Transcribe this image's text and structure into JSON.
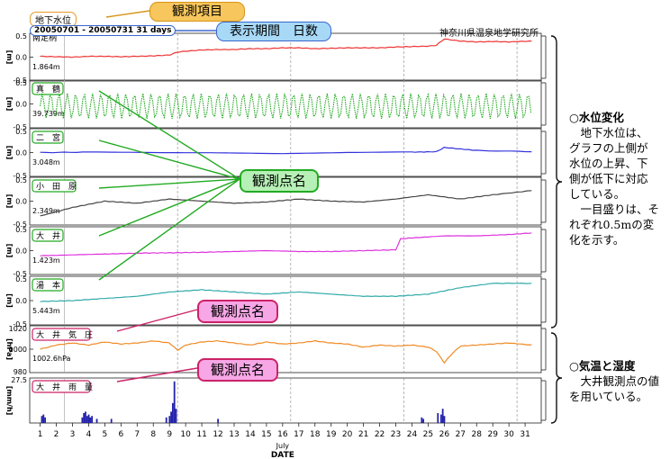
{
  "header": {
    "item_label": "地下水位",
    "period_label": "20050701 - 20050731 31 days",
    "institution": "神奈川県温泉地学研究所"
  },
  "callouts": {
    "observation_item": "観測項目",
    "period_days": "表示期間　日数",
    "station_name_1": "観測点名",
    "station_name_2": "観測点名",
    "station_name_3": "観測点名"
  },
  "side_notes": {
    "water_title": "○水位変化",
    "water_body": [
      "　地下水位は、",
      "グラフの上側が",
      "水位の上昇、下",
      "側が低下に対応",
      "している。",
      "　一目盛りは、そ",
      "れぞれ0.5mの変",
      "化を示す。"
    ],
    "weather_title": "○気温と湿度",
    "weather_body": [
      "　大井観測点の値",
      "を用いている。"
    ]
  },
  "chart_data": [
    {
      "type": "line",
      "station": "南足柄",
      "ylabel": "[m]",
      "yticks": [
        "0.5",
        "0.0",
        "-0.5"
      ],
      "ylim": [
        -0.5,
        0.5
      ],
      "baseline": "1.864m",
      "color": "#ee3333",
      "x": [
        1,
        2,
        3,
        4,
        5,
        6,
        7,
        8,
        9,
        9.5,
        10,
        11,
        12,
        13,
        14,
        15,
        16,
        17,
        18,
        19,
        20,
        21,
        22,
        23,
        24,
        25,
        25.5,
        26,
        27,
        28,
        29,
        30,
        31.4
      ],
      "values": [
        0.02,
        0.01,
        0.0,
        0.02,
        0.02,
        0.01,
        0.02,
        0.03,
        0.05,
        0.12,
        0.14,
        0.17,
        0.18,
        0.18,
        0.2,
        0.2,
        0.22,
        0.22,
        0.2,
        0.21,
        0.22,
        0.22,
        0.22,
        0.24,
        0.25,
        0.26,
        0.28,
        0.43,
        0.38,
        0.36,
        0.37,
        0.36,
        0.38
      ]
    },
    {
      "type": "line",
      "station": "真鶴",
      "ylabel": "[m]",
      "yticks": [
        "0.5",
        "0.0",
        "-0.5"
      ],
      "ylim": [
        -0.5,
        0.5
      ],
      "baseline": "39.739m",
      "color": "#22aa22",
      "style": "dotted",
      "mean": -0.05,
      "amplitude": 0.3,
      "cycles_per_day": 1.93
    },
    {
      "type": "line",
      "station": "二宮",
      "ylabel": "[m]",
      "yticks": [
        "0.5",
        "0.0",
        "-0.5"
      ],
      "ylim": [
        -0.5,
        0.5
      ],
      "baseline": "3.048m",
      "color": "#3333dd",
      "x": [
        1,
        4,
        8,
        12,
        16,
        20,
        24,
        25.5,
        26,
        28,
        31.4
      ],
      "values": [
        0.0,
        0.01,
        0.0,
        0.0,
        -0.02,
        0.0,
        0.01,
        0.02,
        0.12,
        0.05,
        0.02
      ]
    },
    {
      "type": "line",
      "station": "小田原",
      "ylabel": "[m]",
      "yticks": [
        "0.5",
        "0.0",
        "-0.5"
      ],
      "ylim": [
        -0.5,
        0.5
      ],
      "baseline": "2.349m",
      "color": "#444444",
      "x": [
        1,
        3,
        5,
        7,
        9,
        11,
        13,
        15,
        17,
        19,
        21,
        23,
        25,
        27,
        29,
        31.4
      ],
      "values": [
        -0.35,
        -0.15,
        0.0,
        -0.05,
        0.05,
        0.0,
        -0.05,
        -0.02,
        0.05,
        0.0,
        -0.02,
        0.05,
        0.15,
        0.05,
        0.15,
        0.25
      ]
    },
    {
      "type": "line",
      "station": "大井",
      "ylabel": "[m]",
      "yticks": [
        "0.5",
        "0.0",
        "-0.5"
      ],
      "ylim": [
        -0.5,
        0.5
      ],
      "baseline": "1.423m",
      "color": "#dd33dd",
      "x": [
        1,
        3,
        5,
        7,
        9,
        11,
        13,
        15,
        17,
        19,
        21,
        23,
        23.3,
        24,
        26,
        28,
        30,
        31.4
      ],
      "values": [
        -0.12,
        -0.1,
        -0.08,
        -0.06,
        -0.05,
        -0.04,
        -0.02,
        0.0,
        -0.02,
        -0.02,
        0.0,
        0.02,
        0.28,
        0.3,
        0.35,
        0.35,
        0.38,
        0.42
      ]
    },
    {
      "type": "line",
      "station": "湯本",
      "ylabel": "[m]",
      "yticks": [
        "0.5",
        "0.0",
        "-0.5"
      ],
      "ylim": [
        -0.5,
        0.5
      ],
      "baseline": "5.443m",
      "color": "#33aaaa",
      "x": [
        1,
        3,
        5,
        7,
        9,
        11,
        13,
        15,
        17,
        19,
        21,
        23,
        25,
        27,
        29,
        31.4
      ],
      "values": [
        -0.02,
        0.0,
        0.05,
        0.1,
        0.2,
        0.25,
        0.2,
        0.15,
        0.2,
        0.15,
        0.1,
        0.1,
        0.15,
        0.3,
        0.4,
        0.4
      ]
    },
    {
      "type": "line",
      "station": "大井気圧",
      "ylabel": "[hPa]",
      "yticks": [
        "1020",
        "1000",
        "980"
      ],
      "ylim": [
        980,
        1020
      ],
      "baseline": "1002.6hPa",
      "color": "#f08a24",
      "x": [
        1,
        2,
        3,
        4,
        5,
        6,
        7,
        8,
        9,
        9.5,
        10,
        11,
        12,
        13,
        14,
        15,
        16,
        17,
        18,
        19,
        20,
        21,
        22,
        23,
        24,
        25,
        25.5,
        26,
        26.5,
        27,
        28,
        29,
        30,
        31.4
      ],
      "values": [
        1000,
        1004,
        1006,
        1004,
        1007,
        1005,
        1006,
        1008,
        1006,
        999,
        1004,
        1007,
        1008,
        1006,
        1004,
        1007,
        1005,
        1006,
        1008,
        1006,
        1005,
        1002,
        1004,
        1003,
        1004,
        1002,
        998,
        987,
        996,
        1003,
        1004,
        1005,
        1006,
        1004
      ]
    },
    {
      "type": "bar",
      "station": "大井雨量",
      "ylabel": "[mm/h]",
      "yticks": [
        "27.5"
      ],
      "ylim": [
        0,
        27.5
      ],
      "color": "#2222aa",
      "x": [
        1.1,
        1.2,
        1.3,
        3.6,
        3.7,
        3.8,
        3.9,
        4.0,
        4.1,
        4.2,
        4.5,
        5.4,
        8.8,
        9.0,
        9.1,
        9.2,
        9.3,
        9.4,
        12.0,
        24.6,
        24.7,
        25.6,
        25.8,
        25.9,
        26.0
      ],
      "values": [
        3,
        4,
        2,
        2,
        5,
        6,
        3,
        4,
        2,
        3,
        1,
        1,
        2,
        3,
        6,
        12,
        27,
        8,
        1,
        2,
        1,
        5,
        4,
        8,
        3
      ]
    }
  ],
  "xaxis": {
    "label": "DATE",
    "month": "July",
    "ticks": [
      "1",
      "2",
      "3",
      "4",
      "5",
      "6",
      "7",
      "8",
      "9",
      "10",
      "11",
      "12",
      "13",
      "14",
      "15",
      "16",
      "17",
      "18",
      "19",
      "20",
      "21",
      "22",
      "23",
      "24",
      "25",
      "26",
      "27",
      "28",
      "29",
      "30",
      "31"
    ]
  }
}
